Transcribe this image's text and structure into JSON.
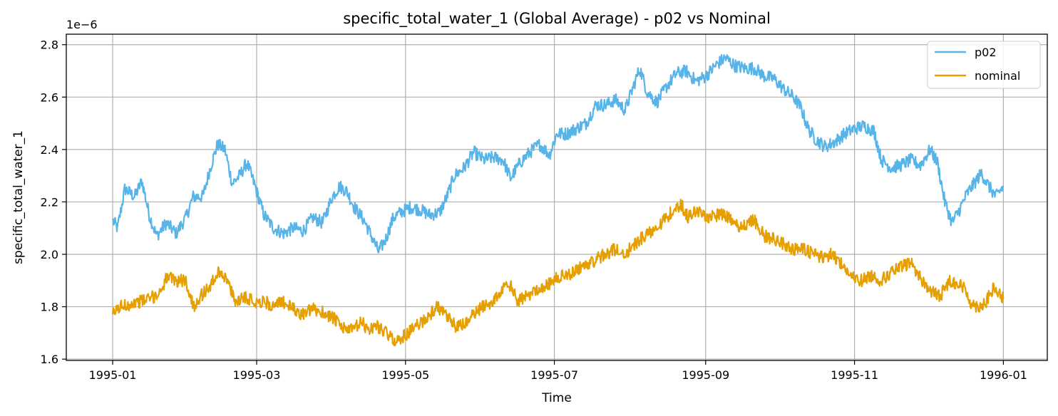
{
  "chart_data": {
    "type": "line",
    "title": "specific_total_water_1 (Global Average) - p02 vs Nominal",
    "xlabel": "Time",
    "ylabel": "specific_total_water_1",
    "y_offset_label": "1e−6",
    "y_scale": 1e-06,
    "xlim": [
      "1994-12-13",
      "1996-01-19"
    ],
    "ylim": [
      1.595,
      2.84
    ],
    "grid": true,
    "legend_position": "top-right",
    "x_ticks": [
      "1995-01",
      "1995-03",
      "1995-05",
      "1995-07",
      "1995-09",
      "1995-11",
      "1996-01"
    ],
    "y_ticks": [
      "1.6",
      "1.8",
      "2.0",
      "2.2",
      "2.4",
      "2.6",
      "2.8"
    ],
    "series": [
      {
        "name": "p02",
        "color": "#56B4E9",
        "points": [
          [
            "1995-01-01",
            2.13
          ],
          [
            "1995-01-03",
            2.1
          ],
          [
            "1995-01-06",
            2.25
          ],
          [
            "1995-01-10",
            2.22
          ],
          [
            "1995-01-13",
            2.28
          ],
          [
            "1995-01-16",
            2.15
          ],
          [
            "1995-01-19",
            2.07
          ],
          [
            "1995-01-23",
            2.12
          ],
          [
            "1995-01-27",
            2.08
          ],
          [
            "1995-01-31",
            2.14
          ],
          [
            "1995-02-03",
            2.22
          ],
          [
            "1995-02-07",
            2.22
          ],
          [
            "1995-02-10",
            2.33
          ],
          [
            "1995-02-13",
            2.42
          ],
          [
            "1995-02-16",
            2.4
          ],
          [
            "1995-02-19",
            2.27
          ],
          [
            "1995-02-22",
            2.3
          ],
          [
            "1995-02-25",
            2.35
          ],
          [
            "1995-02-28",
            2.27
          ],
          [
            "1995-03-04",
            2.15
          ],
          [
            "1995-03-08",
            2.1
          ],
          [
            "1995-03-12",
            2.08
          ],
          [
            "1995-03-16",
            2.1
          ],
          [
            "1995-03-20",
            2.09
          ],
          [
            "1995-03-24",
            2.14
          ],
          [
            "1995-03-28",
            2.12
          ],
          [
            "1995-04-01",
            2.22
          ],
          [
            "1995-04-04",
            2.26
          ],
          [
            "1995-04-07",
            2.24
          ],
          [
            "1995-04-10",
            2.18
          ],
          [
            "1995-04-14",
            2.13
          ],
          [
            "1995-04-17",
            2.07
          ],
          [
            "1995-04-20",
            2.01
          ],
          [
            "1995-04-23",
            2.06
          ],
          [
            "1995-04-26",
            2.14
          ],
          [
            "1995-04-29",
            2.16
          ],
          [
            "1995-05-03",
            2.18
          ],
          [
            "1995-05-07",
            2.17
          ],
          [
            "1995-05-11",
            2.15
          ],
          [
            "1995-05-15",
            2.16
          ],
          [
            "1995-05-18",
            2.22
          ],
          [
            "1995-05-21",
            2.3
          ],
          [
            "1995-05-25",
            2.33
          ],
          [
            "1995-05-29",
            2.39
          ],
          [
            "1995-06-02",
            2.36
          ],
          [
            "1995-06-06",
            2.37
          ],
          [
            "1995-06-10",
            2.36
          ],
          [
            "1995-06-13",
            2.29
          ],
          [
            "1995-06-17",
            2.35
          ],
          [
            "1995-06-21",
            2.39
          ],
          [
            "1995-06-25",
            2.42
          ],
          [
            "1995-06-29",
            2.38
          ],
          [
            "1995-07-02",
            2.46
          ],
          [
            "1995-07-06",
            2.46
          ],
          [
            "1995-07-10",
            2.48
          ],
          [
            "1995-07-14",
            2.5
          ],
          [
            "1995-07-18",
            2.57
          ],
          [
            "1995-07-22",
            2.57
          ],
          [
            "1995-07-26",
            2.59
          ],
          [
            "1995-07-30",
            2.55
          ],
          [
            "1995-08-02",
            2.63
          ],
          [
            "1995-08-05",
            2.71
          ],
          [
            "1995-08-08",
            2.62
          ],
          [
            "1995-08-12",
            2.58
          ],
          [
            "1995-08-16",
            2.64
          ],
          [
            "1995-08-20",
            2.69
          ],
          [
            "1995-08-24",
            2.7
          ],
          [
            "1995-08-28",
            2.66
          ],
          [
            "1995-09-01",
            2.68
          ],
          [
            "1995-09-05",
            2.72
          ],
          [
            "1995-09-09",
            2.75
          ],
          [
            "1995-09-13",
            2.72
          ],
          [
            "1995-09-17",
            2.71
          ],
          [
            "1995-09-21",
            2.71
          ],
          [
            "1995-09-25",
            2.68
          ],
          [
            "1995-09-29",
            2.67
          ],
          [
            "1995-10-03",
            2.63
          ],
          [
            "1995-10-07",
            2.6
          ],
          [
            "1995-10-10",
            2.56
          ],
          [
            "1995-10-13",
            2.48
          ],
          [
            "1995-10-16",
            2.44
          ],
          [
            "1995-10-20",
            2.41
          ],
          [
            "1995-10-24",
            2.43
          ],
          [
            "1995-10-28",
            2.46
          ],
          [
            "1995-11-01",
            2.48
          ],
          [
            "1995-11-05",
            2.49
          ],
          [
            "1995-11-09",
            2.47
          ],
          [
            "1995-11-12",
            2.36
          ],
          [
            "1995-11-16",
            2.33
          ],
          [
            "1995-11-20",
            2.34
          ],
          [
            "1995-11-24",
            2.36
          ],
          [
            "1995-11-28",
            2.34
          ],
          [
            "1995-12-02",
            2.4
          ],
          [
            "1995-12-05",
            2.35
          ],
          [
            "1995-12-08",
            2.2
          ],
          [
            "1995-12-11",
            2.12
          ],
          [
            "1995-12-14",
            2.17
          ],
          [
            "1995-12-17",
            2.23
          ],
          [
            "1995-12-20",
            2.27
          ],
          [
            "1995-12-23",
            2.31
          ],
          [
            "1995-12-26",
            2.26
          ],
          [
            "1995-12-29",
            2.22
          ],
          [
            "1996-01-01",
            2.26
          ]
        ]
      },
      {
        "name": "nominal",
        "color": "#E69F00",
        "points": [
          [
            "1995-01-01",
            1.77
          ],
          [
            "1995-01-04",
            1.8
          ],
          [
            "1995-01-08",
            1.81
          ],
          [
            "1995-01-12",
            1.82
          ],
          [
            "1995-01-16",
            1.83
          ],
          [
            "1995-01-20",
            1.85
          ],
          [
            "1995-01-23",
            1.91
          ],
          [
            "1995-01-27",
            1.9
          ],
          [
            "1995-01-31",
            1.9
          ],
          [
            "1995-02-03",
            1.8
          ],
          [
            "1995-02-06",
            1.84
          ],
          [
            "1995-02-10",
            1.88
          ],
          [
            "1995-02-14",
            1.94
          ],
          [
            "1995-02-17",
            1.9
          ],
          [
            "1995-02-20",
            1.82
          ],
          [
            "1995-02-24",
            1.84
          ],
          [
            "1995-02-28",
            1.82
          ],
          [
            "1995-03-04",
            1.82
          ],
          [
            "1995-03-08",
            1.8
          ],
          [
            "1995-03-12",
            1.82
          ],
          [
            "1995-03-16",
            1.79
          ],
          [
            "1995-03-20",
            1.77
          ],
          [
            "1995-03-24",
            1.79
          ],
          [
            "1995-03-28",
            1.78
          ],
          [
            "1995-04-01",
            1.76
          ],
          [
            "1995-04-05",
            1.72
          ],
          [
            "1995-04-09",
            1.71
          ],
          [
            "1995-04-13",
            1.74
          ],
          [
            "1995-04-16",
            1.71
          ],
          [
            "1995-04-19",
            1.73
          ],
          [
            "1995-04-22",
            1.71
          ],
          [
            "1995-04-25",
            1.68
          ],
          [
            "1995-04-28",
            1.67
          ],
          [
            "1995-05-02",
            1.7
          ],
          [
            "1995-05-06",
            1.73
          ],
          [
            "1995-05-10",
            1.76
          ],
          [
            "1995-05-14",
            1.8
          ],
          [
            "1995-05-18",
            1.76
          ],
          [
            "1995-05-22",
            1.72
          ],
          [
            "1995-05-26",
            1.74
          ],
          [
            "1995-05-30",
            1.78
          ],
          [
            "1995-06-03",
            1.81
          ],
          [
            "1995-06-06",
            1.82
          ],
          [
            "1995-06-10",
            1.87
          ],
          [
            "1995-06-13",
            1.88
          ],
          [
            "1995-06-16",
            1.82
          ],
          [
            "1995-06-20",
            1.84
          ],
          [
            "1995-06-24",
            1.87
          ],
          [
            "1995-06-28",
            1.88
          ],
          [
            "1995-07-02",
            1.91
          ],
          [
            "1995-07-06",
            1.92
          ],
          [
            "1995-07-10",
            1.94
          ],
          [
            "1995-07-14",
            1.96
          ],
          [
            "1995-07-18",
            1.98
          ],
          [
            "1995-07-22",
            2.0
          ],
          [
            "1995-07-26",
            2.02
          ],
          [
            "1995-07-30",
            2.0
          ],
          [
            "1995-08-03",
            2.04
          ],
          [
            "1995-08-07",
            2.07
          ],
          [
            "1995-08-11",
            2.1
          ],
          [
            "1995-08-15",
            2.13
          ],
          [
            "1995-08-19",
            2.17
          ],
          [
            "1995-08-22",
            2.19
          ],
          [
            "1995-08-25",
            2.14
          ],
          [
            "1995-08-28",
            2.17
          ],
          [
            "1995-09-01",
            2.14
          ],
          [
            "1995-09-05",
            2.15
          ],
          [
            "1995-09-09",
            2.15
          ],
          [
            "1995-09-13",
            2.11
          ],
          [
            "1995-09-17",
            2.11
          ],
          [
            "1995-09-21",
            2.13
          ],
          [
            "1995-09-25",
            2.07
          ],
          [
            "1995-09-29",
            2.06
          ],
          [
            "1995-10-03",
            2.04
          ],
          [
            "1995-10-07",
            2.02
          ],
          [
            "1995-10-11",
            2.02
          ],
          [
            "1995-10-15",
            2.0
          ],
          [
            "1995-10-19",
            1.99
          ],
          [
            "1995-10-23",
            2.0
          ],
          [
            "1995-10-27",
            1.96
          ],
          [
            "1995-10-31",
            1.91
          ],
          [
            "1995-11-04",
            1.9
          ],
          [
            "1995-11-08",
            1.92
          ],
          [
            "1995-11-12",
            1.9
          ],
          [
            "1995-11-16",
            1.93
          ],
          [
            "1995-11-20",
            1.95
          ],
          [
            "1995-11-24",
            1.97
          ],
          [
            "1995-11-28",
            1.91
          ],
          [
            "1995-12-02",
            1.86
          ],
          [
            "1995-12-06",
            1.84
          ],
          [
            "1995-12-10",
            1.9
          ],
          [
            "1995-12-13",
            1.89
          ],
          [
            "1995-12-16",
            1.87
          ],
          [
            "1995-12-19",
            1.81
          ],
          [
            "1995-12-22",
            1.8
          ],
          [
            "1995-12-25",
            1.82
          ],
          [
            "1995-12-28",
            1.87
          ],
          [
            "1996-01-01",
            1.83
          ]
        ]
      }
    ]
  }
}
